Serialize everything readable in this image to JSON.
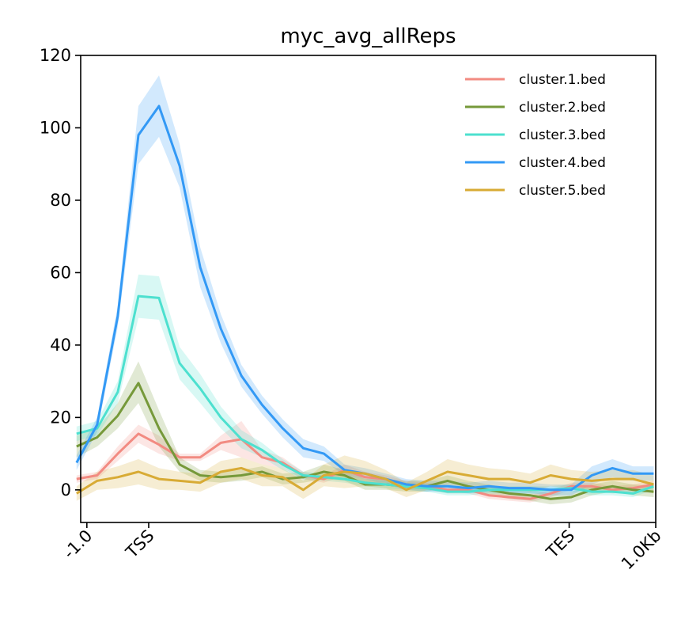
{
  "chart_data": {
    "type": "line",
    "title": "myc_avg_allReps",
    "xlabel": "",
    "ylabel": "",
    "ylim": [
      -9,
      120
    ],
    "xlim": [
      -0.3,
      27.6
    ],
    "y_ticks": [
      0,
      20,
      40,
      60,
      80,
      100,
      120
    ],
    "x_ticks": [
      {
        "pos": 0,
        "label": "-1.0"
      },
      {
        "pos": 3,
        "label": "TSS"
      },
      {
        "pos": 23.4,
        "label": "TES"
      },
      {
        "pos": 27.6,
        "label": "1.0Kb"
      }
    ],
    "grid": false,
    "legend_position": "top-right",
    "x": [
      -0.5,
      0.5,
      1.5,
      2.5,
      3.5,
      4.5,
      5.5,
      6.5,
      7.5,
      8.5,
      9.5,
      10.5,
      11.5,
      12.5,
      13.5,
      14.5,
      15.5,
      16.5,
      17.5,
      18.5,
      19.5,
      20.5,
      21.5,
      22.5,
      23.5,
      24.5,
      25.5,
      26.5,
      27.5
    ],
    "series": [
      {
        "name": "cluster.1.bed",
        "color": "#f28b82",
        "values": [
          3,
          4,
          10,
          15.5,
          12.5,
          9,
          9,
          13,
          14,
          9,
          7.5,
          4,
          3,
          5.5,
          3.5,
          3,
          1.5,
          1,
          0,
          0,
          -1.5,
          -2,
          -2.5,
          -1,
          1,
          1,
          0,
          0.5,
          1.5
        ],
        "upper": [
          4,
          5,
          12,
          18,
          15,
          10,
          10,
          15,
          19,
          11,
          9,
          5,
          4,
          7,
          5,
          4,
          2.5,
          2,
          1,
          1,
          -0.5,
          -1,
          -1.5,
          0,
          2,
          2,
          1,
          1.5,
          2.5
        ],
        "lower": [
          2,
          3,
          8,
          13,
          10,
          8,
          8,
          11,
          9,
          7,
          6,
          3,
          2,
          4,
          2,
          2,
          0.5,
          0,
          -1,
          -1,
          -2.5,
          -3,
          -3.5,
          -2,
          0,
          0,
          -1,
          -0.5,
          0.5
        ]
      },
      {
        "name": "cluster.2.bed",
        "color": "#76993a",
        "values": [
          12,
          14.5,
          20.5,
          29.5,
          17,
          7,
          4,
          3.5,
          4,
          5,
          3,
          3.5,
          5,
          4,
          1.5,
          1.5,
          1,
          1,
          2.5,
          1,
          0,
          -1,
          -1.5,
          -2.5,
          -2,
          0,
          1,
          0,
          -0.5
        ],
        "upper": [
          15,
          17,
          24,
          35.5,
          22,
          9,
          5.5,
          5,
          5.5,
          6.5,
          4.5,
          5,
          7,
          5.5,
          3,
          3,
          2.5,
          2.5,
          4,
          2.5,
          1.5,
          0.5,
          0,
          -1,
          -0.5,
          1.5,
          2.5,
          1.5,
          1
        ],
        "lower": [
          9,
          12,
          17,
          24,
          12,
          5,
          2.5,
          2,
          2.5,
          3.5,
          1.5,
          2,
          3,
          2.5,
          0,
          0,
          -0.5,
          -0.5,
          1,
          -0.5,
          -1.5,
          -2.5,
          -3,
          -4,
          -3.5,
          -1.5,
          -0.5,
          -1.5,
          -2
        ]
      },
      {
        "name": "cluster.3.bed",
        "color": "#4de0cf",
        "values": [
          15.5,
          17,
          27,
          53.5,
          53,
          35,
          28,
          20,
          14,
          11,
          7,
          4,
          3.5,
          3,
          2,
          1.5,
          1,
          0.5,
          -0.5,
          -0.5,
          0,
          0,
          0,
          0,
          0.5,
          -0.5,
          -0.5,
          -1,
          1
        ],
        "upper": [
          17.5,
          19,
          30,
          59.5,
          59,
          39.5,
          32,
          23,
          16.5,
          13,
          8.5,
          5,
          4.5,
          4,
          3,
          2.5,
          2,
          1.5,
          0.5,
          0.5,
          1,
          1,
          1,
          1,
          1.5,
          0.5,
          0.5,
          0,
          2
        ],
        "lower": [
          13.5,
          15,
          24,
          47.5,
          47,
          30.5,
          24,
          17,
          11.5,
          9,
          5.5,
          3,
          2.5,
          2,
          1,
          0.5,
          0,
          -0.5,
          -1.5,
          -1.5,
          -1,
          -1,
          -1,
          -1,
          -0.5,
          -1.5,
          -1.5,
          -2,
          0
        ]
      },
      {
        "name": "cluster.4.bed",
        "color": "#3399f5",
        "values": [
          7.5,
          18,
          48,
          98,
          106,
          89.5,
          61.5,
          44.5,
          31.5,
          23.5,
          17,
          11.5,
          10,
          5.5,
          4.5,
          3,
          1.5,
          1,
          1,
          0.5,
          1,
          0.5,
          0.5,
          0,
          0,
          4,
          6,
          4.5,
          4.5
        ],
        "upper": [
          9.5,
          20,
          51,
          106,
          114.5,
          95.5,
          67,
          48.5,
          34.5,
          26,
          19.5,
          14,
          12,
          7,
          6,
          4.5,
          3,
          2.5,
          2.5,
          2,
          2.5,
          2,
          2,
          1.5,
          1.5,
          6.5,
          8.5,
          6.5,
          6.5
        ],
        "lower": [
          5.5,
          16,
          45,
          90,
          97.5,
          83.5,
          56,
          40.5,
          28.5,
          21,
          14.5,
          9,
          8,
          4,
          3,
          1.5,
          0,
          -0.5,
          -0.5,
          -1,
          -0.5,
          -1,
          -1,
          -1.5,
          -1.5,
          1.5,
          3.5,
          2.5,
          2.5
        ]
      },
      {
        "name": "cluster.5.bed",
        "color": "#d8ab35",
        "values": [
          -1,
          2.5,
          3.5,
          5,
          3,
          2.5,
          2,
          5,
          6,
          4,
          3.5,
          0,
          4,
          5,
          4.5,
          3,
          0,
          2.5,
          5,
          4,
          3,
          3,
          2,
          4,
          3,
          2.5,
          3,
          3,
          1.5
        ],
        "upper": [
          1,
          5,
          6.5,
          8.5,
          6,
          5,
          4.5,
          8,
          9,
          7,
          6,
          2.5,
          7,
          9.5,
          8,
          5.5,
          2,
          5,
          8.5,
          7,
          6,
          5.5,
          4.5,
          7,
          5.5,
          5,
          5.5,
          5.5,
          4
        ],
        "lower": [
          -3,
          0,
          0.5,
          1.5,
          0,
          0,
          -0.5,
          2,
          3,
          1,
          1,
          -2.5,
          1,
          0.5,
          1,
          0.5,
          -2,
          0,
          1.5,
          1,
          0,
          0.5,
          -0.5,
          1,
          0.5,
          0,
          0.5,
          0.5,
          -1
        ]
      }
    ]
  }
}
